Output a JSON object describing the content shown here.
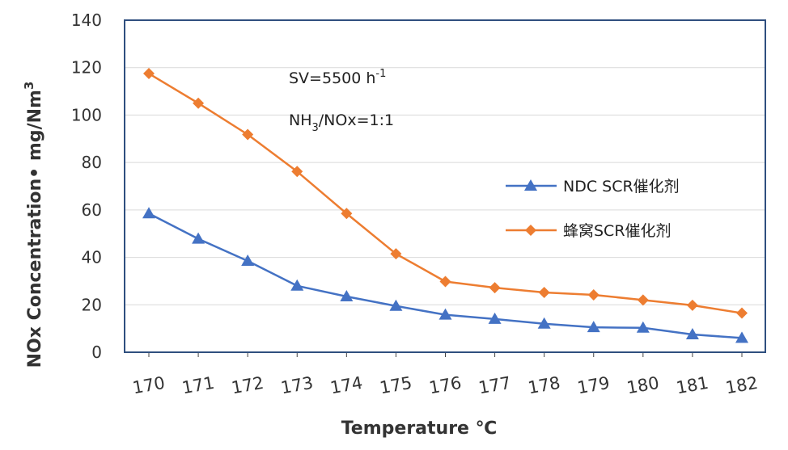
{
  "chart_data": {
    "type": "line",
    "xlabel": "Temperature ℃",
    "ylabel": "NOx Concentration• mg/Nm³",
    "ylabel_main": "NOx Concentration• mg/Nm",
    "ylabel_sup": "3",
    "categories": [
      "170",
      "171",
      "172",
      "173",
      "174",
      "175",
      "176",
      "177",
      "178",
      "179",
      "180",
      "181",
      "182"
    ],
    "ylim": [
      0,
      140
    ],
    "yticks": [
      "0",
      "20",
      "40",
      "60",
      "80",
      "100",
      "120",
      "140"
    ],
    "grid": true,
    "legend_position": "right",
    "annotations": {
      "sv_main": "SV=5500 h",
      "sv_sup": "-1",
      "ratio_a": "NH",
      "ratio_sub": "3",
      "ratio_b": "/NOx=1:1"
    },
    "series": [
      {
        "name": "NDC SCR催化剂",
        "marker": "triangle",
        "color": "#4472c4",
        "values": [
          58.5,
          47.8,
          38.5,
          28,
          23.5,
          19.5,
          15.8,
          14,
          12,
          10.5,
          10.3,
          7.5,
          6
        ]
      },
      {
        "name": "蜂窝SCR催化剂",
        "marker": "diamond",
        "color": "#ed7d31",
        "values": [
          117.5,
          105,
          91.8,
          76.2,
          58.5,
          41.5,
          29.8,
          27.2,
          25.2,
          24.2,
          22,
          19.8,
          16.5
        ]
      }
    ]
  }
}
